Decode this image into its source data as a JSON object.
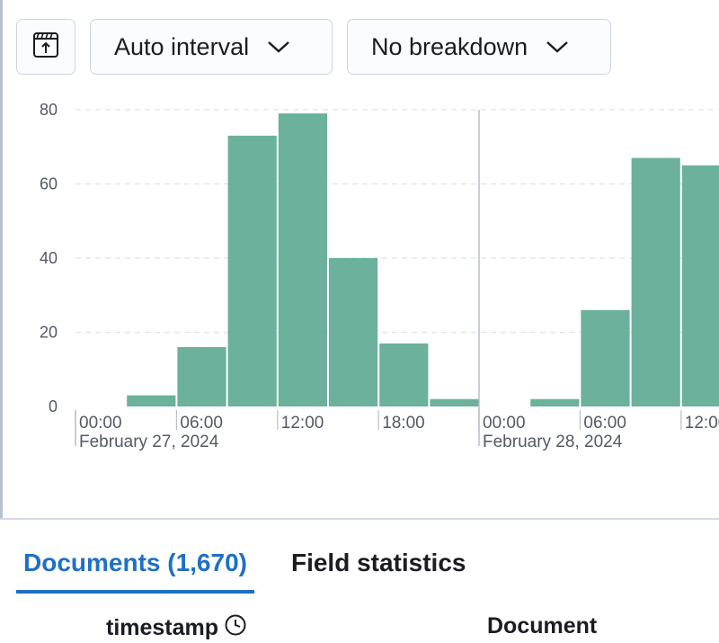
{
  "toolbar": {
    "toggle_icon": "chart-panel-toggle-icon",
    "interval_label": "Auto interval",
    "breakdown_label": "No breakdown"
  },
  "chart_data": {
    "type": "bar",
    "ylim": [
      0,
      80
    ],
    "yticks": [
      0,
      20,
      40,
      60,
      80
    ],
    "grid": true,
    "bar_color": "#6bb19b",
    "day1_date": "February 27, 2024",
    "day2_date": "February 28, 2024",
    "xtick_labels": [
      "00:00",
      "06:00",
      "12:00",
      "18:00",
      "00:00",
      "06:00",
      "12:00"
    ],
    "categories": [
      "03:00",
      "06:00",
      "09:00",
      "12:00",
      "15:00",
      "18:00",
      "21:00",
      "03:00",
      "06:00",
      "09:00",
      "12:00"
    ],
    "values": [
      3,
      16,
      73,
      79,
      40,
      17,
      2,
      2,
      26,
      67,
      65
    ]
  },
  "tabs": [
    {
      "label": "Documents (1,670)",
      "active": true
    },
    {
      "label": "Field statistics",
      "active": false
    }
  ],
  "table": {
    "columns": [
      "timestamp",
      "Document"
    ],
    "sort_icon": "clock-icon"
  },
  "colors": {
    "accent": "#1f6fc5",
    "bar": "#6bb19b"
  }
}
